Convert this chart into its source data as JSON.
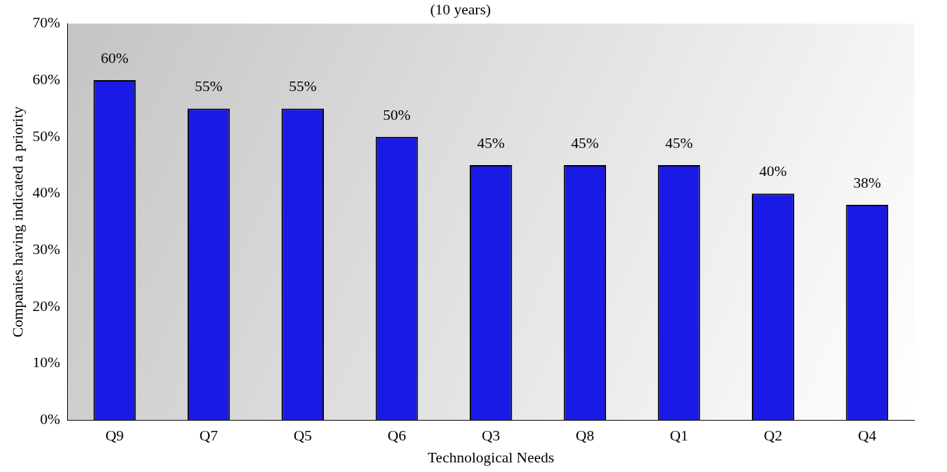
{
  "chart_data": {
    "type": "bar",
    "title": "(10 years)",
    "xlabel": "Technological Needs",
    "ylabel": "Companies having indicated a priority",
    "categories": [
      "Q9",
      "Q7",
      "Q5",
      "Q6",
      "Q3",
      "Q8",
      "Q1",
      "Q2",
      "Q4"
    ],
    "values": [
      60,
      55,
      55,
      50,
      45,
      45,
      45,
      40,
      38
    ],
    "color": "#1a1ae6",
    "value_labels": [
      "60%",
      "55%",
      "55%",
      "50%",
      "45%",
      "45%",
      "45%",
      "40%",
      "38%"
    ],
    "ylim": [
      0,
      70
    ],
    "yticks": [
      {
        "value": 0,
        "label": "0%"
      },
      {
        "value": 10,
        "label": "10%"
      },
      {
        "value": 20,
        "label": "20%"
      },
      {
        "value": 30,
        "label": "30%"
      },
      {
        "value": 40,
        "label": "40%"
      },
      {
        "value": 50,
        "label": "50%"
      },
      {
        "value": 60,
        "label": "60%"
      },
      {
        "value": 70,
        "label": "70%"
      }
    ],
    "grid": false,
    "legend": false
  }
}
